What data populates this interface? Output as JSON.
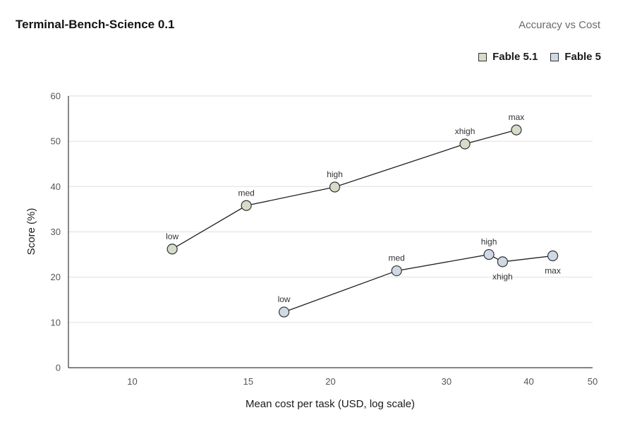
{
  "chart_data": {
    "type": "scatter",
    "title": "Terminal-Bench-Science 0.1",
    "subtitle": "Accuracy vs Cost",
    "xlabel": "Mean cost per task (USD, log scale)",
    "ylabel": "Score (%)",
    "x_scale": "log",
    "xlim": [
      8,
      50
    ],
    "ylim": [
      0,
      60
    ],
    "x_ticks": [
      10,
      15,
      20,
      30,
      40,
      50
    ],
    "y_ticks": [
      0,
      10,
      20,
      30,
      40,
      50,
      60
    ],
    "grid": "horizontal",
    "legend_position": "top-right",
    "series": [
      {
        "name": "Fable 5.1",
        "color": "#d5dcc7",
        "points": [
          {
            "label": "low",
            "x": 11.5,
            "y": 26.2
          },
          {
            "label": "med",
            "x": 14.9,
            "y": 35.8
          },
          {
            "label": "high",
            "x": 20.3,
            "y": 39.9
          },
          {
            "label": "xhigh",
            "x": 32.0,
            "y": 49.4
          },
          {
            "label": "max",
            "x": 38.3,
            "y": 52.5
          }
        ]
      },
      {
        "name": "Fable 5",
        "color": "#cfd9e6",
        "points": [
          {
            "label": "low",
            "x": 17.0,
            "y": 12.3
          },
          {
            "label": "med",
            "x": 25.2,
            "y": 21.4
          },
          {
            "label": "high",
            "x": 34.8,
            "y": 25.0
          },
          {
            "label": "xhigh",
            "x": 36.5,
            "y": 23.4
          },
          {
            "label": "max",
            "x": 43.5,
            "y": 24.7
          }
        ]
      }
    ]
  }
}
